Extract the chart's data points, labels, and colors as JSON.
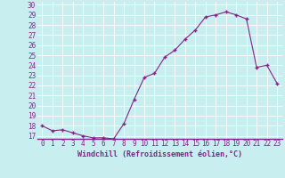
{
  "x": [
    0,
    1,
    2,
    3,
    4,
    5,
    6,
    7,
    8,
    9,
    10,
    11,
    12,
    13,
    14,
    15,
    16,
    17,
    18,
    19,
    20,
    21,
    22,
    23
  ],
  "y": [
    18.0,
    17.5,
    17.6,
    17.3,
    17.0,
    16.8,
    16.8,
    16.7,
    18.2,
    20.6,
    22.8,
    23.2,
    24.8,
    25.5,
    26.6,
    27.5,
    28.8,
    29.0,
    29.3,
    29.0,
    28.6,
    23.8,
    24.0,
    22.2
  ],
  "line_color": "#882288",
  "marker": "+",
  "marker_color": "#882288",
  "bg_color": "#c8eef0",
  "grid_color": "#ffffff",
  "xlabel": "Windchill (Refroidissement éolien,°C)",
  "xlabel_color": "#882288",
  "tick_color": "#882288",
  "ylim": [
    17,
    30
  ],
  "xlim": [
    -0.5,
    23.5
  ],
  "yticks": [
    17,
    18,
    19,
    20,
    21,
    22,
    23,
    24,
    25,
    26,
    27,
    28,
    29,
    30
  ],
  "xticks": [
    0,
    1,
    2,
    3,
    4,
    5,
    6,
    7,
    8,
    9,
    10,
    11,
    12,
    13,
    14,
    15,
    16,
    17,
    18,
    19,
    20,
    21,
    22,
    23
  ],
  "xlabel_fontsize": 6.0,
  "tick_fontsize": 5.5
}
